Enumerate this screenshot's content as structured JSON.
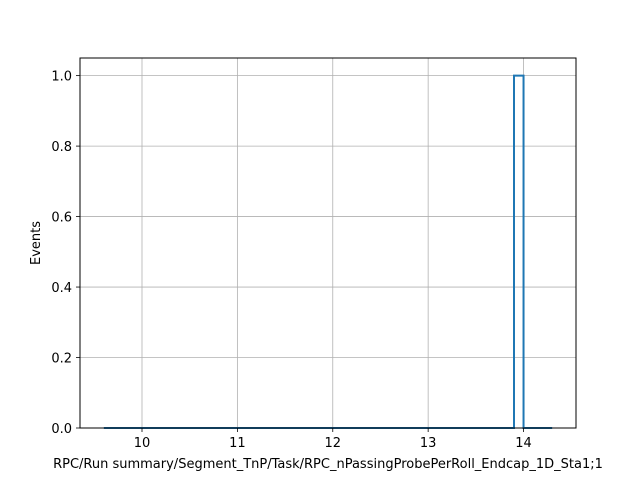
{
  "chart_data": {
    "type": "bar",
    "histtype": "step",
    "xlabel": "RPC/Run summary/Segment_TnP/Task/RPC_nPassingProbePerRoll_Endcap_1D_Sta1;1",
    "ylabel": "Events",
    "xlim": [
      9.35,
      14.55
    ],
    "ylim": [
      0,
      1.05
    ],
    "xticks": [
      10,
      11,
      12,
      13,
      14
    ],
    "yticks": [
      0.0,
      0.2,
      0.4,
      0.6,
      0.8,
      1.0
    ],
    "xtick_labels": [
      "10",
      "11",
      "12",
      "13",
      "14"
    ],
    "ytick_labels": [
      "0.0",
      "0.2",
      "0.4",
      "0.6",
      "0.8",
      "1.0"
    ],
    "grid": true,
    "series_color": "#1f77b4",
    "bins": {
      "edges": [
        9.6,
        9.7,
        9.8,
        9.9,
        10.0,
        10.1,
        10.2,
        10.3,
        10.4,
        10.5,
        10.6,
        10.7,
        10.8,
        10.9,
        11.0,
        11.1,
        11.2,
        11.3,
        11.4,
        11.5,
        11.6,
        11.7,
        11.8,
        11.9,
        12.0,
        12.1,
        12.2,
        12.3,
        12.4,
        12.5,
        12.6,
        12.7,
        12.8,
        12.9,
        13.0,
        13.1,
        13.2,
        13.3,
        13.4,
        13.5,
        13.6,
        13.7,
        13.8,
        13.9,
        14.0,
        14.1,
        14.2,
        14.3
      ],
      "values": [
        0,
        0,
        0,
        0,
        0,
        0,
        0,
        0,
        0,
        0,
        0,
        0,
        0,
        0,
        0,
        0,
        0,
        0,
        0,
        0,
        0,
        0,
        0,
        0,
        0,
        0,
        0,
        0,
        0,
        0,
        0,
        0,
        0,
        0,
        0,
        0,
        0,
        0,
        0,
        0,
        0,
        0,
        0,
        1,
        0,
        0,
        0
      ]
    }
  }
}
